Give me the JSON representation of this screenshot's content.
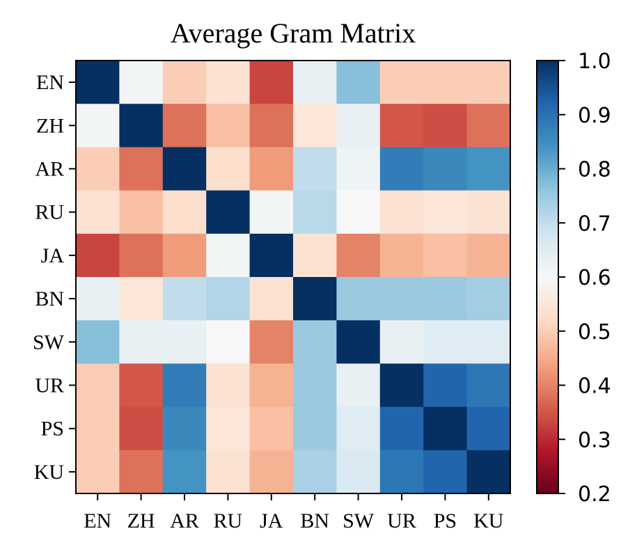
{
  "chart_data": {
    "type": "heatmap",
    "title": "Average Gram Matrix",
    "xlabel": "",
    "ylabel": "",
    "rows": [
      "EN",
      "ZH",
      "AR",
      "RU",
      "JA",
      "BN",
      "SW",
      "UR",
      "PS",
      "KU"
    ],
    "columns": [
      "EN",
      "ZH",
      "AR",
      "RU",
      "JA",
      "BN",
      "SW",
      "UR",
      "PS",
      "KU"
    ],
    "values": [
      [
        1.0,
        0.61,
        0.5,
        0.54,
        0.33,
        0.63,
        0.77,
        0.5,
        0.5,
        0.5
      ],
      [
        0.61,
        1.0,
        0.38,
        0.48,
        0.38,
        0.55,
        0.63,
        0.35,
        0.34,
        0.38
      ],
      [
        0.5,
        0.38,
        1.0,
        0.53,
        0.43,
        0.7,
        0.62,
        0.88,
        0.86,
        0.84
      ],
      [
        0.54,
        0.48,
        0.53,
        1.0,
        0.61,
        0.71,
        0.6,
        0.54,
        0.55,
        0.54
      ],
      [
        0.33,
        0.38,
        0.43,
        0.61,
        1.0,
        0.54,
        0.4,
        0.46,
        0.48,
        0.46
      ],
      [
        0.63,
        0.55,
        0.7,
        0.72,
        0.54,
        1.0,
        0.75,
        0.75,
        0.75,
        0.74
      ],
      [
        0.77,
        0.63,
        0.63,
        0.6,
        0.4,
        0.75,
        1.0,
        0.63,
        0.65,
        0.65
      ],
      [
        0.5,
        0.35,
        0.88,
        0.54,
        0.46,
        0.75,
        0.63,
        1.0,
        0.92,
        0.89
      ],
      [
        0.5,
        0.34,
        0.86,
        0.55,
        0.48,
        0.75,
        0.65,
        0.92,
        1.0,
        0.92
      ],
      [
        0.5,
        0.38,
        0.84,
        0.54,
        0.46,
        0.73,
        0.66,
        0.89,
        0.92,
        1.0
      ]
    ],
    "colormap": "RdBu",
    "colormap_stops": [
      "#67001f",
      "#b2182b",
      "#d6604d",
      "#f4a582",
      "#fddbc7",
      "#f7f7f7",
      "#d1e5f0",
      "#92c5de",
      "#4393c3",
      "#2166ac",
      "#053061"
    ],
    "colorbar": {
      "vmin": 0.2,
      "vmax": 1.0,
      "ticks": [
        0.2,
        0.3,
        0.4,
        0.5,
        0.6,
        0.7,
        0.8,
        0.9,
        1.0
      ],
      "tick_labels": [
        "0.2",
        "0.3",
        "0.4",
        "0.5",
        "0.6",
        "0.7",
        "0.8",
        "0.9",
        "1.0"
      ]
    },
    "grid": false
  }
}
